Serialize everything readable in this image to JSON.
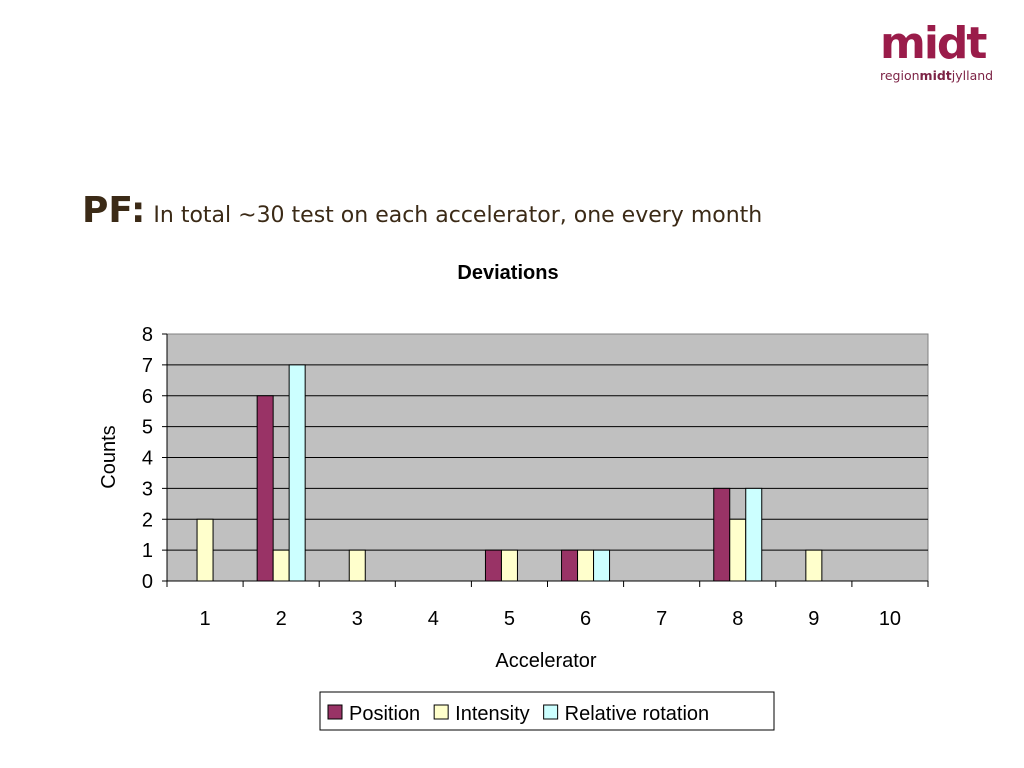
{
  "logo": {
    "mark": "midt",
    "sub_region": "region",
    "sub_midt": "midt",
    "sub_jylland": "jylland",
    "color": "#9a1c4a"
  },
  "slide": {
    "title_prefix": "PF:",
    "title_rest": "In total ~30 test on each accelerator, one every month"
  },
  "chart_data": {
    "type": "bar",
    "title": "Deviations",
    "xlabel": "Accelerator",
    "ylabel": "Counts",
    "categories": [
      "1",
      "2",
      "3",
      "4",
      "5",
      "6",
      "7",
      "8",
      "9",
      "10"
    ],
    "ylim": [
      0,
      8
    ],
    "yticks": [
      0,
      1,
      2,
      3,
      4,
      5,
      6,
      7,
      8
    ],
    "grid": true,
    "legend_position": "bottom",
    "plot_background": "#c0c0c0",
    "series": [
      {
        "name": "Position",
        "color": "#993366",
        "values": [
          0,
          6,
          0,
          0,
          1,
          1,
          0,
          3,
          0,
          0
        ]
      },
      {
        "name": "Intensity",
        "color": "#ffffcc",
        "values": [
          2,
          1,
          1,
          0,
          1,
          1,
          0,
          2,
          1,
          0
        ]
      },
      {
        "name": "Relative rotation",
        "color": "#ccffff",
        "values": [
          0,
          7,
          0,
          0,
          0,
          1,
          0,
          3,
          0,
          0
        ]
      }
    ]
  }
}
